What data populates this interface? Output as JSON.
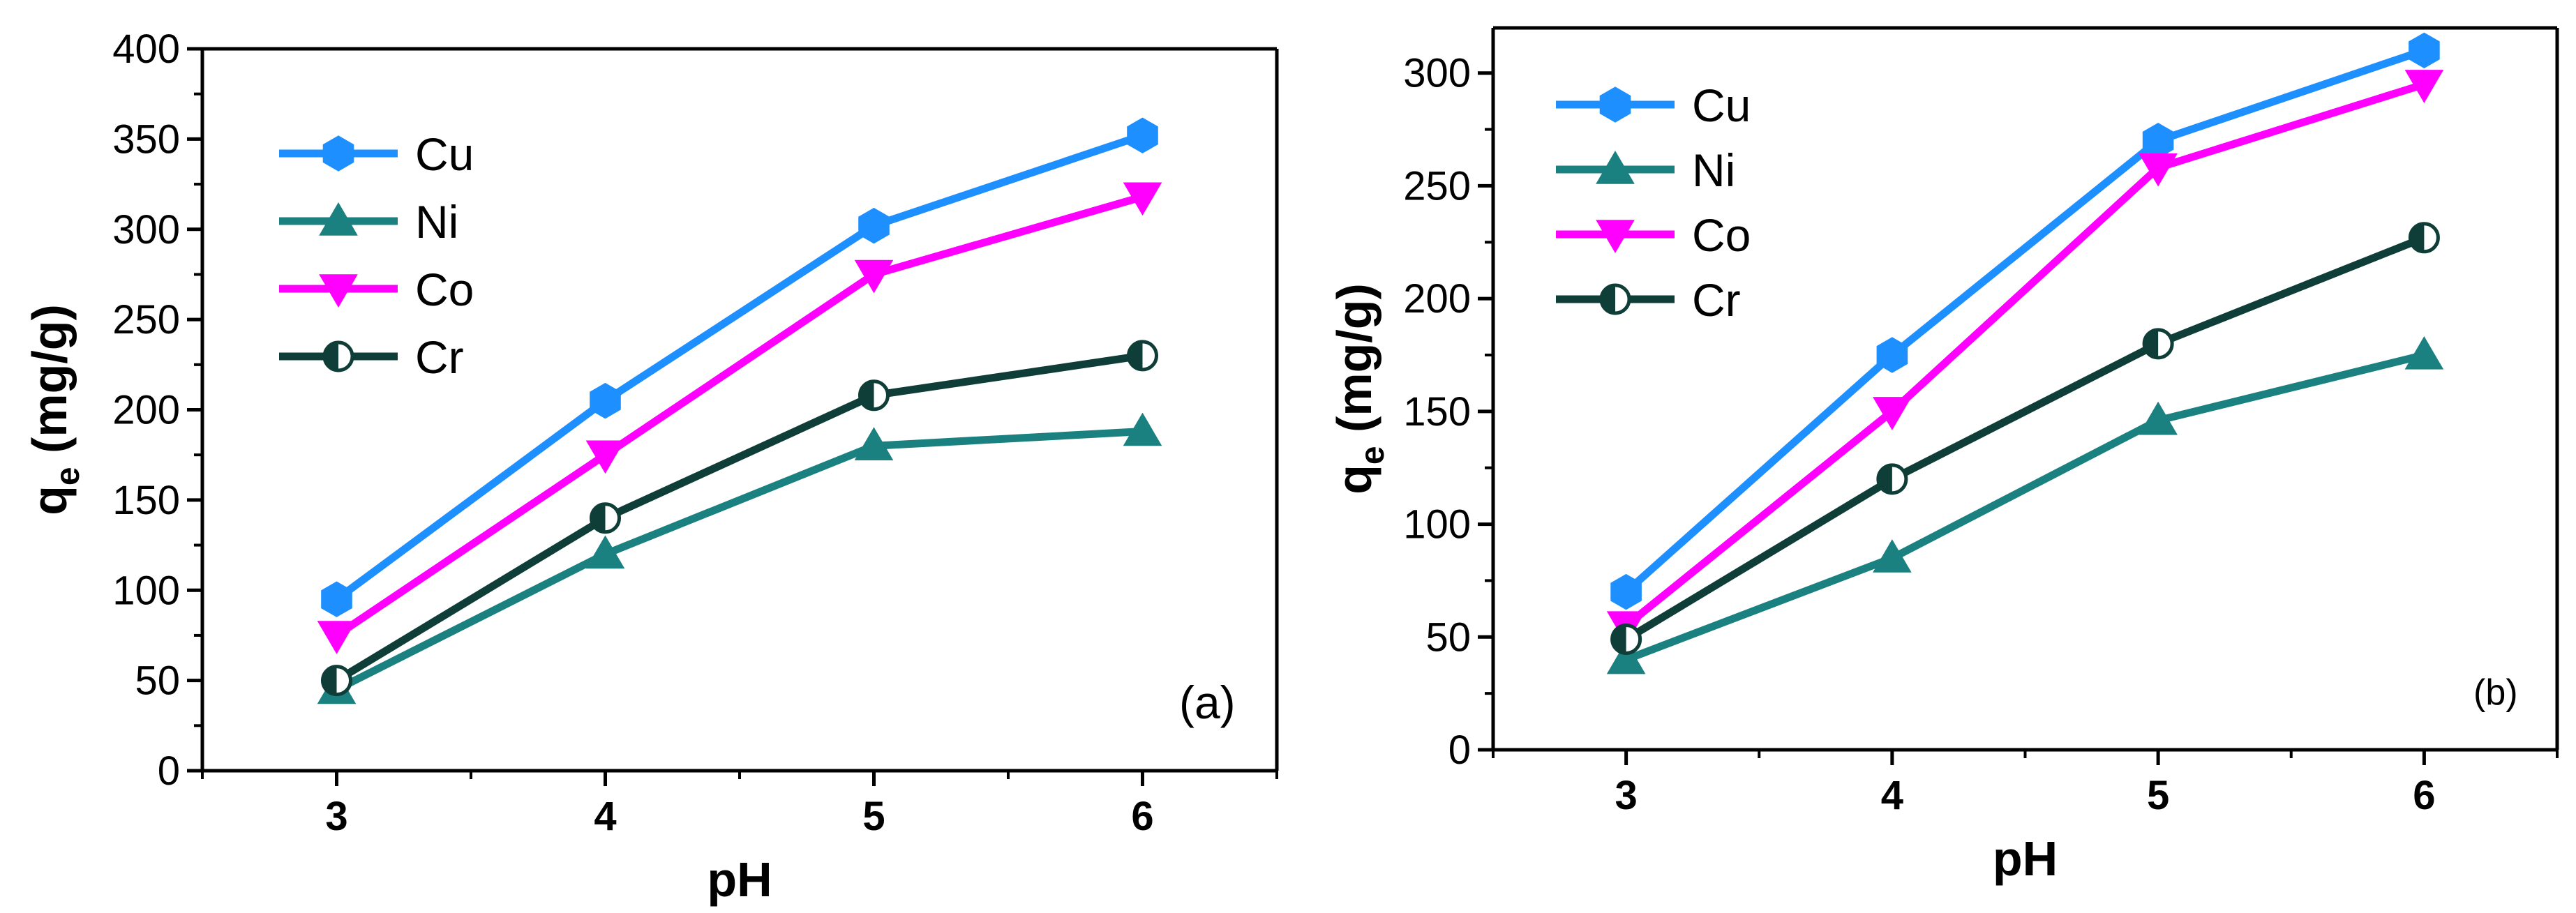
{
  "chart_data": [
    {
      "type": "line",
      "panel_label": "(a)",
      "xlabel": "pH",
      "ylabel": "q",
      "ylabel_sub": "e",
      "ylabel_unit": " (mg/g)",
      "x": [
        3,
        4,
        5,
        6
      ],
      "xticks": [
        3,
        4,
        5,
        6
      ],
      "xlim": [
        2.5,
        6.5
      ],
      "ylim": [
        0,
        400
      ],
      "yticks": [
        0,
        50,
        100,
        150,
        200,
        250,
        300,
        350,
        400
      ],
      "legend_position": "top-left",
      "series": [
        {
          "name": "Cu",
          "values": [
            95,
            205,
            302,
            352
          ],
          "color": "#1e8fff",
          "marker": "hexagon"
        },
        {
          "name": "Ni",
          "values": [
            45,
            120,
            180,
            188
          ],
          "color": "#1a8080",
          "marker": "triangle-up"
        },
        {
          "name": "Co",
          "values": [
            75,
            175,
            275,
            318
          ],
          "color": "#ff00ff",
          "marker": "triangle-down"
        },
        {
          "name": "Cr",
          "values": [
            50,
            140,
            208,
            230
          ],
          "color": "#0f3d37",
          "marker": "half-circle"
        }
      ]
    },
    {
      "type": "line",
      "panel_label": "(b)",
      "xlabel": "pH",
      "ylabel": "q",
      "ylabel_sub": "e",
      "ylabel_unit": " (mg/g)",
      "x": [
        3,
        4,
        5,
        6
      ],
      "xticks": [
        3,
        4,
        5,
        6
      ],
      "xlim": [
        2.5,
        6.5
      ],
      "ylim": [
        0,
        320
      ],
      "yticks": [
        0,
        50,
        100,
        150,
        200,
        250,
        300
      ],
      "legend_position": "top-left",
      "series": [
        {
          "name": "Cu",
          "values": [
            70,
            175,
            270,
            310
          ],
          "color": "#1e8fff",
          "marker": "hexagon"
        },
        {
          "name": "Ni",
          "values": [
            40,
            85,
            146,
            175
          ],
          "color": "#1a8080",
          "marker": "triangle-up"
        },
        {
          "name": "Co",
          "values": [
            55,
            150,
            258,
            295
          ],
          "color": "#ff00ff",
          "marker": "triangle-down"
        },
        {
          "name": "Cr",
          "values": [
            49,
            120,
            180,
            227
          ],
          "color": "#0f3d37",
          "marker": "half-circle"
        }
      ]
    }
  ]
}
